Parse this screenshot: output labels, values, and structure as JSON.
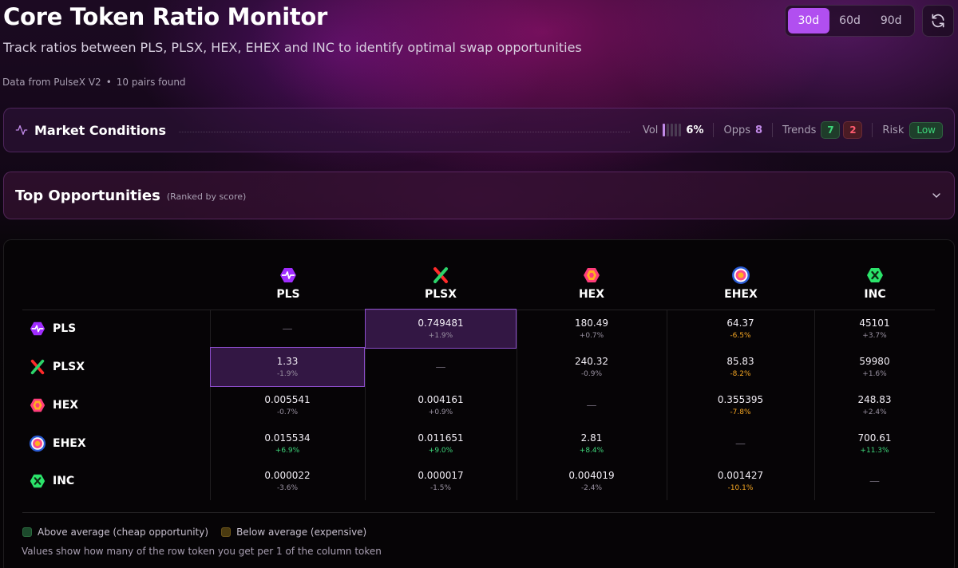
{
  "header": {
    "title": "Core Token Ratio Monitor",
    "subtitle": "Track ratios between PLS, PLSX, HEX, EHEX and INC to identify optimal swap opportunities",
    "source": "Data from PulseX V2",
    "separator": "•",
    "pairs": "10 pairs found"
  },
  "periods": [
    {
      "label": "30d",
      "active": true
    },
    {
      "label": "60d",
      "active": false
    },
    {
      "label": "90d",
      "active": false
    }
  ],
  "market": {
    "title": "Market Conditions",
    "vol_label": "Vol",
    "vol_value": "6%",
    "vol_level": 0.2,
    "opps_label": "Opps",
    "opps_value": "8",
    "trends_label": "Trends",
    "trends_up": "7",
    "trends_down": "2",
    "risk_label": "Risk",
    "risk_value": "Low"
  },
  "opportunities": {
    "title": "Top Opportunities",
    "subtitle": "(Ranked by score)"
  },
  "tokens": [
    "PLS",
    "PLSX",
    "HEX",
    "EHEX",
    "INC"
  ],
  "matrix": [
    [
      {
        "v": "—"
      },
      {
        "v": "0.749481",
        "p": "+1.9%",
        "c": "neutral",
        "hl": true
      },
      {
        "v": "180.49",
        "p": "+0.7%",
        "c": "neutral"
      },
      {
        "v": "64.37",
        "p": "-6.5%",
        "c": "orange"
      },
      {
        "v": "45101",
        "p": "+3.7%",
        "c": "neutral"
      }
    ],
    [
      {
        "v": "1.33",
        "p": "-1.9%",
        "c": "neutral",
        "hl": true
      },
      {
        "v": "—"
      },
      {
        "v": "240.32",
        "p": "-0.9%",
        "c": "neutral"
      },
      {
        "v": "85.83",
        "p": "-8.2%",
        "c": "orange"
      },
      {
        "v": "59980",
        "p": "+1.6%",
        "c": "neutral"
      }
    ],
    [
      {
        "v": "0.005541",
        "p": "-0.7%",
        "c": "neutral"
      },
      {
        "v": "0.004161",
        "p": "+0.9%",
        "c": "neutral"
      },
      {
        "v": "—"
      },
      {
        "v": "0.355395",
        "p": "-7.8%",
        "c": "orange"
      },
      {
        "v": "248.83",
        "p": "+2.4%",
        "c": "neutral"
      }
    ],
    [
      {
        "v": "0.015534",
        "p": "+6.9%",
        "c": "green"
      },
      {
        "v": "0.011651",
        "p": "+9.0%",
        "c": "green"
      },
      {
        "v": "2.81",
        "p": "+8.4%",
        "c": "green"
      },
      {
        "v": "—"
      },
      {
        "v": "700.61",
        "p": "+11.3%",
        "c": "green"
      }
    ],
    [
      {
        "v": "0.000022",
        "p": "-3.6%",
        "c": "neutral"
      },
      {
        "v": "0.000017",
        "p": "-1.5%",
        "c": "neutral"
      },
      {
        "v": "0.004019",
        "p": "-2.4%",
        "c": "neutral"
      },
      {
        "v": "0.001427",
        "p": "-10.1%",
        "c": "orange"
      },
      {
        "v": "—"
      }
    ]
  ],
  "legend": {
    "above": "Above average (cheap opportunity)",
    "below": "Below average (expensive)",
    "note": "Values show how many of the row token you get per 1 of the column token"
  },
  "colors": {
    "accent": "#b14ff0",
    "green": "#3ed67a",
    "orange": "#f5a623",
    "red": "#ff5b6f"
  }
}
